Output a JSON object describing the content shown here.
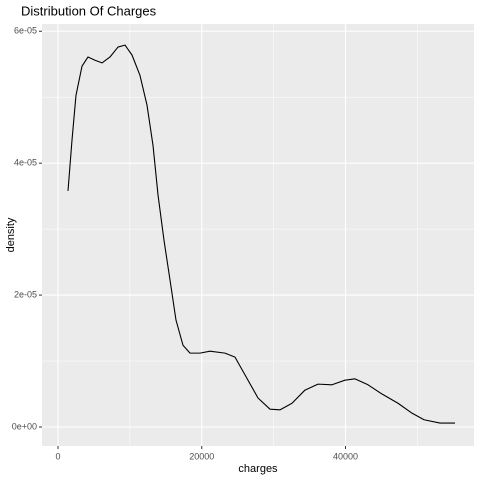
{
  "chart_data": {
    "type": "line",
    "title": "Distribution Of Charges",
    "x_label": "charges",
    "y_label": "density",
    "x": [
      1391,
      1948,
      2504,
      3339,
      4174,
      5148,
      6122,
      7235,
      8348,
      9322,
      10296,
      11409,
      12383,
      13217,
      13913,
      14748,
      15583,
      16417,
      17391,
      18365,
      19757,
      21148,
      23235,
      24626,
      26017,
      27826,
      29496,
      30887,
      32557,
      34365,
      36174,
      38122,
      39930,
      41322,
      43130,
      45078,
      47304,
      49252,
      50922,
      53148,
      55235
    ],
    "values": [
      3.58e-05,
      4.35e-05,
      5.03e-05,
      5.47e-05,
      5.61e-05,
      5.56e-05,
      5.52e-05,
      5.61e-05,
      5.76e-05,
      5.79e-05,
      5.64e-05,
      5.33e-05,
      4.88e-05,
      4.27e-05,
      3.52e-05,
      2.83e-05,
      2.23e-05,
      1.62e-05,
      1.24e-05,
      1.12e-05,
      1.12e-05,
      1.15e-05,
      1.12e-05,
      1.06e-05,
      7.9e-06,
      4.4e-06,
      2.7e-06,
      2.6e-06,
      3.6e-06,
      5.6e-06,
      6.5e-06,
      6.4e-06,
      7.1e-06,
      7.3e-06,
      6.4e-06,
      5e-06,
      3.6e-06,
      2.1e-06,
      1.1e-06,
      6e-07,
      6e-07
    ],
    "color": "#000000",
    "xlim": [
      -2226,
      57878
    ],
    "ylim": [
      -2.88e-06,
      6.11e-05
    ],
    "xticks": [
      0,
      20000,
      40000
    ],
    "yticks": [
      {
        "value": 0,
        "label": "0e+00"
      },
      {
        "value": 2e-05,
        "label": "2e-05"
      },
      {
        "value": 4e-05,
        "label": "4e-05"
      },
      {
        "value": 6e-05,
        "label": "6e-05"
      }
    ],
    "grid": true
  }
}
